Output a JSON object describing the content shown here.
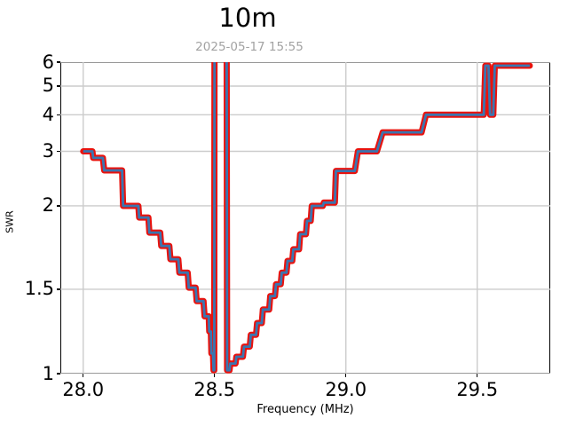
{
  "chart_data": {
    "type": "line",
    "title": "10m",
    "subtitle": "2025-05-17 15:55",
    "xlabel": "Frequency (MHz)",
    "ylabel": "SWR",
    "xlim": [
      27.913,
      29.778
    ],
    "ylim": [
      1,
      6
    ],
    "grid": true,
    "grid_color": "#cccccc",
    "x_ticks": [
      {
        "v": 28.0,
        "label": "28.0"
      },
      {
        "v": 28.5,
        "label": "28.5"
      },
      {
        "v": 29.0,
        "label": "29.0"
      },
      {
        "v": 29.5,
        "label": "29.5"
      }
    ],
    "y_ticks": [
      {
        "v": 1,
        "label": "1"
      },
      {
        "v": 1.5,
        "label": "1.5"
      },
      {
        "v": 2,
        "label": "2"
      },
      {
        "v": 3,
        "label": "3"
      },
      {
        "v": 4,
        "label": "4"
      },
      {
        "v": 5,
        "label": "5"
      },
      {
        "v": 6,
        "label": "6"
      }
    ],
    "y_scale": "nonlinear-swr",
    "y_scale_anchors": [
      [
        1,
        1.0
      ],
      [
        1.5,
        0.7293
      ],
      [
        2,
        0.4615
      ],
      [
        3,
        0.2863
      ],
      [
        4,
        0.169
      ],
      [
        5,
        0.0769
      ],
      [
        6,
        0.0
      ]
    ],
    "series": [
      {
        "name": "SWR",
        "outline_color": "#e8130e",
        "core_color": "#3a76b0",
        "flats": [
          [
            28.0,
            28.035,
            3.0
          ],
          [
            28.038,
            28.075,
            2.88
          ],
          [
            28.08,
            28.148,
            2.65
          ],
          [
            28.152,
            28.21,
            2.0
          ],
          [
            28.213,
            28.248,
            1.93
          ],
          [
            28.252,
            28.293,
            1.84
          ],
          [
            28.297,
            28.328,
            1.76
          ],
          [
            28.332,
            28.362,
            1.68
          ],
          [
            28.366,
            28.398,
            1.6
          ],
          [
            28.402,
            28.428,
            1.51
          ],
          [
            28.432,
            28.458,
            1.43
          ],
          [
            28.462,
            28.478,
            1.34
          ],
          [
            28.48,
            28.486,
            1.25
          ],
          [
            28.488,
            28.494,
            1.12
          ],
          [
            28.496,
            28.499,
            1.02
          ],
          [
            28.5,
            28.546,
            6.6
          ],
          [
            28.548,
            28.557,
            1.02
          ],
          [
            28.56,
            28.58,
            1.06
          ],
          [
            28.583,
            28.608,
            1.1
          ],
          [
            28.612,
            28.634,
            1.16
          ],
          [
            28.638,
            28.658,
            1.23
          ],
          [
            28.662,
            28.68,
            1.3
          ],
          [
            28.684,
            28.708,
            1.38
          ],
          [
            28.712,
            28.73,
            1.46
          ],
          [
            28.734,
            28.752,
            1.53
          ],
          [
            28.756,
            28.774,
            1.6
          ],
          [
            28.778,
            28.796,
            1.67
          ],
          [
            28.8,
            28.822,
            1.74
          ],
          [
            28.826,
            28.848,
            1.83
          ],
          [
            28.852,
            28.866,
            1.91
          ],
          [
            28.87,
            28.912,
            2.0
          ],
          [
            28.916,
            28.958,
            2.06
          ],
          [
            28.962,
            29.034,
            2.64
          ],
          [
            29.046,
            29.118,
            3.0
          ],
          [
            29.14,
            29.288,
            3.52
          ],
          [
            29.305,
            29.525,
            4.0
          ],
          [
            29.531,
            29.543,
            5.85
          ],
          [
            29.549,
            29.561,
            4.0
          ],
          [
            29.567,
            29.7,
            5.85
          ]
        ]
      }
    ],
    "offscale_note": "Spike between 28.50 and 28.55 MHz exceeds SWR 6 (clipped at top of plot)"
  }
}
